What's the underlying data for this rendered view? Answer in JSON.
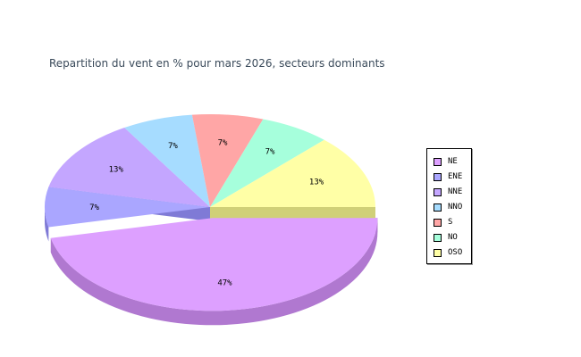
{
  "chart_data": {
    "type": "pie",
    "title": "Repartition du vent en % pour mars 2026, secteurs dominants",
    "categories": [
      "NE",
      "ENE",
      "NNE",
      "NNO",
      "S",
      "NO",
      "OSO"
    ],
    "values": [
      47,
      7,
      13,
      7,
      7,
      7,
      13
    ],
    "value_labels": [
      "47%",
      "7%",
      "13%",
      "7%",
      "7%",
      "7%",
      "13%"
    ],
    "colors": [
      "#dda0ff",
      "#aaa6ff",
      "#c4a6ff",
      "#a6dcff",
      "#ffa6a6",
      "#a6ffdc",
      "#ffffa6"
    ],
    "side_colors": [
      "#b078d0",
      "#7f7ad6",
      "#9a7ad6",
      "#7ab0d6",
      "#d67a7a",
      "#7ad6b0",
      "#d0d077"
    ],
    "exploded": "NE",
    "legend_position": "right"
  }
}
